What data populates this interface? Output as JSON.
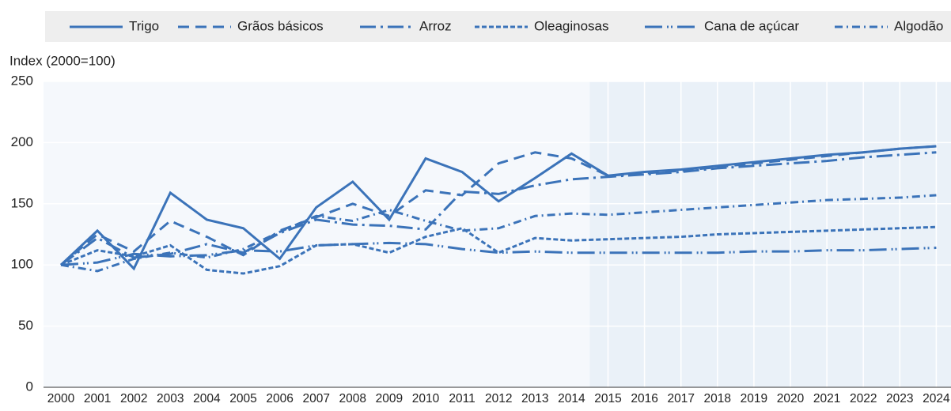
{
  "chart_data": {
    "type": "line",
    "y_label": "Index (2000=100)",
    "categories": [
      "2000",
      "2001",
      "2002",
      "2003",
      "2004",
      "2005",
      "2006",
      "2007",
      "2008",
      "2009",
      "2010",
      "2011",
      "2012",
      "2013",
      "2014",
      "2015",
      "2016",
      "2017",
      "2018",
      "2019",
      "2020",
      "2021",
      "2022",
      "2023",
      "2024"
    ],
    "series": [
      {
        "name": "Trigo",
        "color": "#3b73b9",
        "values": [
          100,
          128,
          97,
          159,
          137,
          130,
          105,
          147,
          168,
          137,
          187,
          176,
          152,
          171,
          191,
          173,
          176,
          178,
          181,
          184,
          187,
          190,
          192,
          195,
          197
        ]
      },
      {
        "name": "Grãos básicos",
        "color": "#3b73b9",
        "values": [
          100,
          125,
          111,
          136,
          123,
          108,
          128,
          139,
          150,
          140,
          161,
          157,
          183,
          192,
          187,
          173,
          175,
          177,
          180,
          183,
          186,
          189,
          192,
          195,
          197
        ]
      },
      {
        "name": "Arroz",
        "color": "#3b73b9",
        "values": [
          100,
          122,
          106,
          109,
          117,
          110,
          126,
          137,
          133,
          132,
          129,
          160,
          158,
          165,
          170,
          172,
          174,
          176,
          179,
          181,
          183,
          185,
          188,
          190,
          192
        ]
      },
      {
        "name": "Oleaginosas",
        "color": "#3b73b9",
        "values": [
          100,
          112,
          107,
          116,
          96,
          93,
          99,
          116,
          117,
          110,
          123,
          130,
          110,
          122,
          120,
          121,
          122,
          123,
          125,
          126,
          127,
          128,
          129,
          130,
          131
        ]
      },
      {
        "name": "Cana de açúcar",
        "color": "#3b73b9",
        "values": [
          100,
          102,
          109,
          107,
          108,
          112,
          111,
          116,
          117,
          118,
          117,
          113,
          110,
          111,
          110,
          110,
          110,
          110,
          110,
          111,
          111,
          112,
          112,
          113,
          114
        ]
      },
      {
        "name": "Algodão",
        "color": "#3b73b9",
        "values": [
          100,
          95,
          105,
          110,
          106,
          113,
          127,
          140,
          136,
          145,
          136,
          128,
          130,
          140,
          142,
          141,
          143,
          145,
          147,
          149,
          151,
          153,
          154,
          155,
          157
        ]
      }
    ],
    "ylim": [
      0,
      250
    ],
    "yticks": [
      0,
      50,
      100,
      150,
      200,
      250
    ],
    "grid": true
  }
}
